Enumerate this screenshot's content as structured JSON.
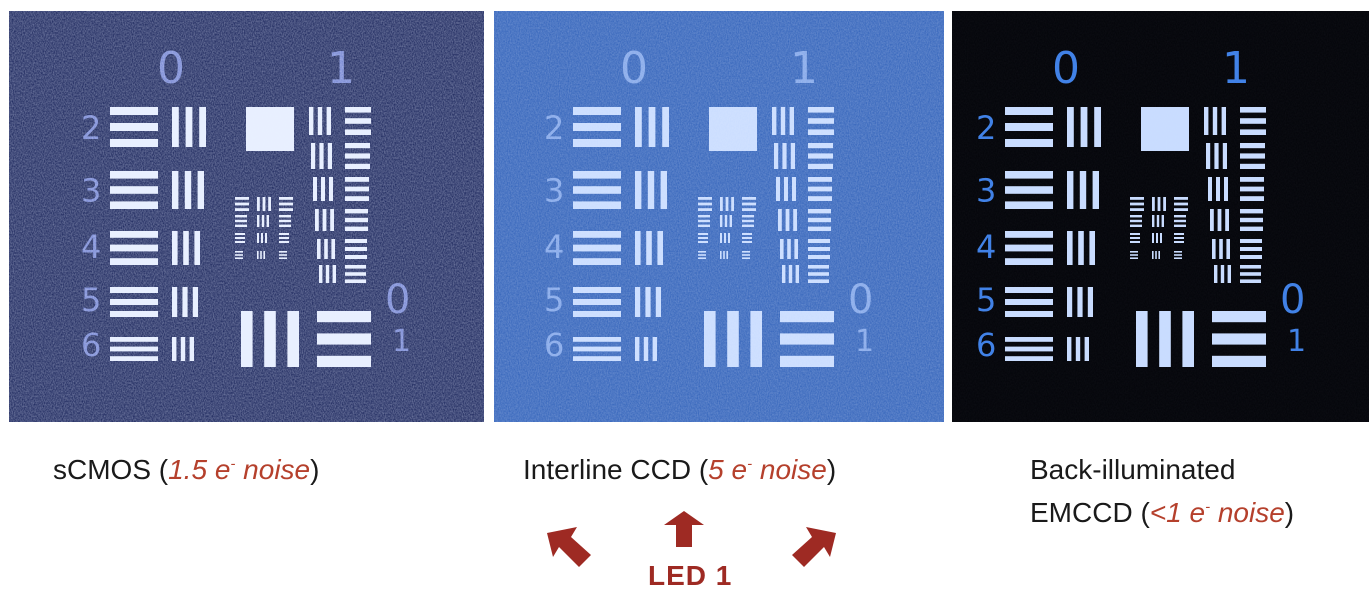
{
  "panels": [
    {
      "id": "scmos",
      "group_labels": {
        "left": "0",
        "right": "1",
        "small_right": "0",
        "small_right_1": "1"
      },
      "element_numbers": [
        "2",
        "3",
        "4",
        "5",
        "6"
      ],
      "caption": {
        "name": "sCMOS",
        "open": " (",
        "noise_value": "1.5 e",
        "noise_sup": "-",
        "noise_word": " noise",
        "close": ")"
      },
      "colors": {
        "background": "#0f1a52",
        "pattern": "#e8f0ff",
        "labels": "#6f80d0"
      }
    },
    {
      "id": "interline-ccd",
      "group_labels": {
        "left": "0",
        "right": "1",
        "small_right": "0",
        "small_right_1": "1"
      },
      "element_numbers": [
        "2",
        "3",
        "4",
        "5",
        "6"
      ],
      "caption": {
        "name": "Interline CCD",
        "open": " (",
        "noise_value": "5 e",
        "noise_sup": "-",
        "noise_word": " noise",
        "close": ")"
      },
      "colors": {
        "background": "#2d5fb8",
        "pattern": "#c8dcff",
        "labels": "#7fa4e8"
      }
    },
    {
      "id": "emccd",
      "group_labels": {
        "left": "0",
        "right": "1",
        "small_right": "0",
        "small_right_1": "1"
      },
      "element_numbers": [
        "2",
        "3",
        "4",
        "5",
        "6"
      ],
      "caption": {
        "line1": "Back-illuminated",
        "name": "EMCCD",
        "open": " (",
        "noise_value": "<1 e",
        "noise_sup": "-",
        "noise_word": " noise",
        "close": ")"
      },
      "colors": {
        "background": "#020308",
        "pattern": "#c8dcff",
        "labels": "#3d7fe6"
      }
    }
  ],
  "led": {
    "label": "LED 1",
    "arrow_color": "#9e2a23",
    "arrows": [
      "up-left-arrow-icon",
      "up-arrow-icon",
      "up-right-arrow-icon"
    ]
  }
}
